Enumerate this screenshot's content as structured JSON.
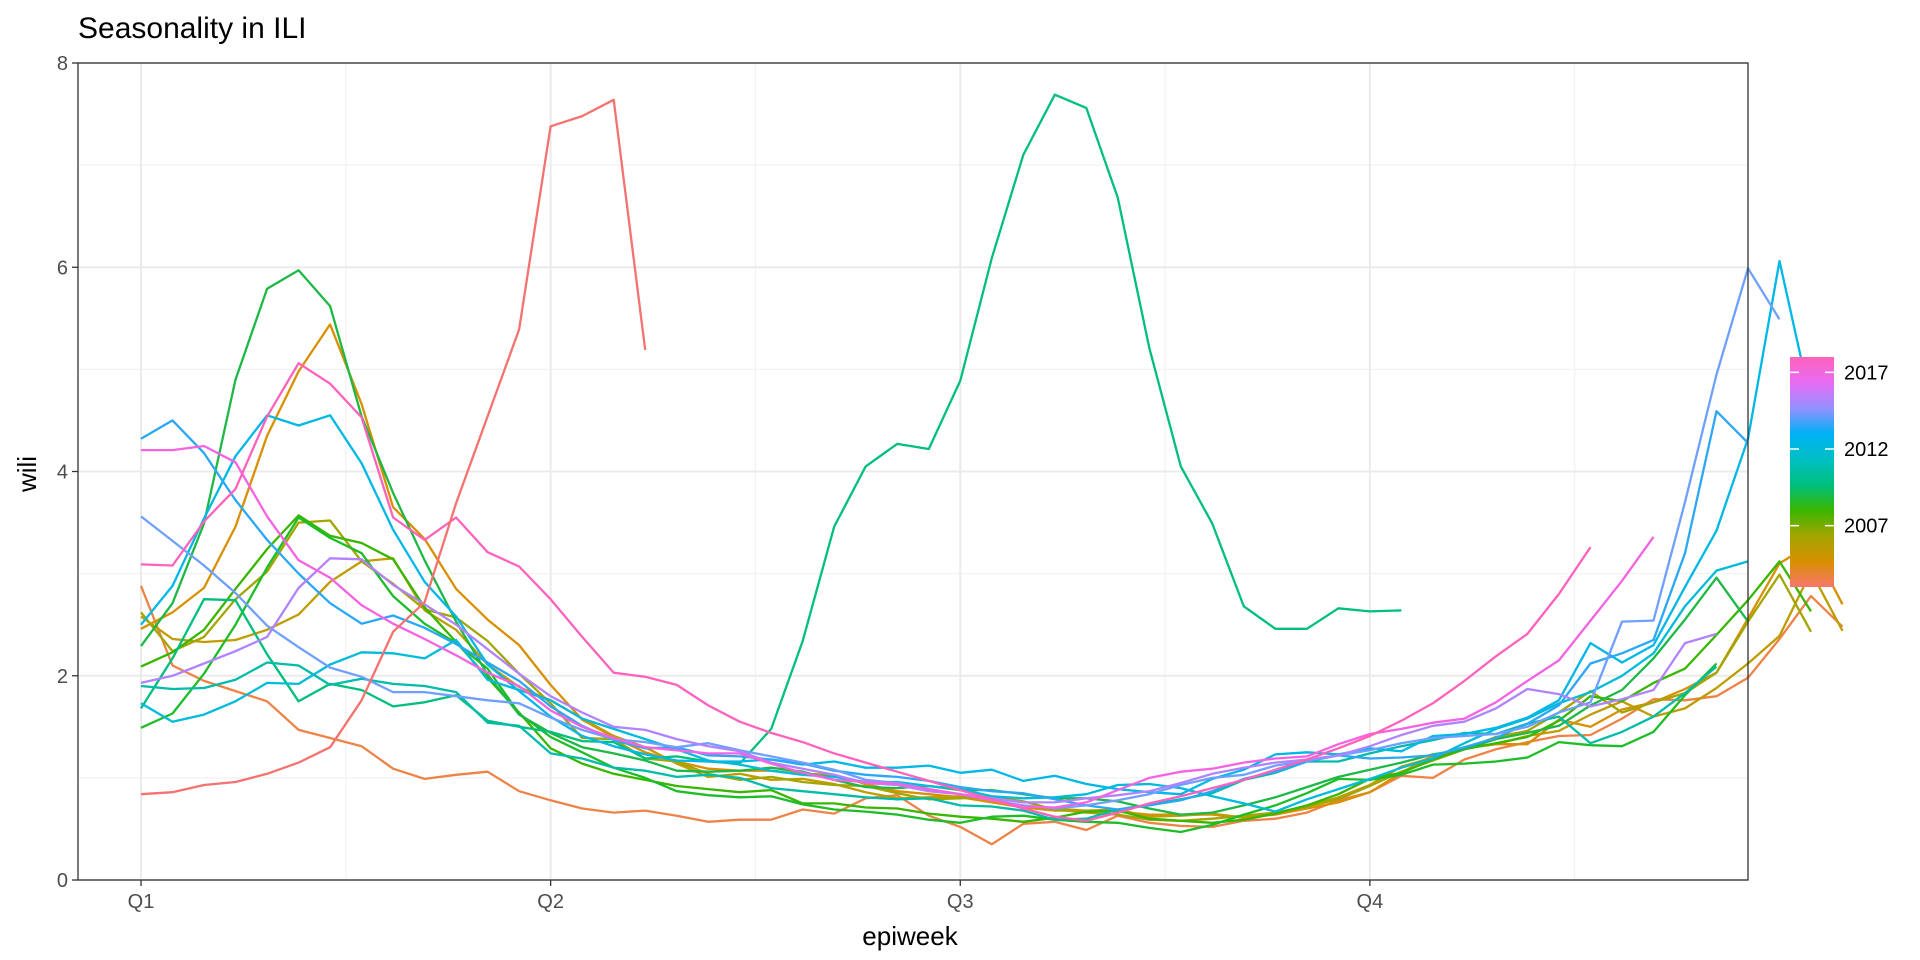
{
  "chart_data": {
    "type": "line",
    "title": "Seasonality in ILI",
    "xlabel": "epiweek",
    "ylabel": "wili",
    "xlim": [
      -1,
      52
    ],
    "ylim": [
      0,
      8
    ],
    "x_ticks": [
      {
        "label": "Q1",
        "value": 1
      },
      {
        "label": "Q2",
        "value": 14
      },
      {
        "label": "Q3",
        "value": 27
      },
      {
        "label": "Q4",
        "value": 40
      }
    ],
    "y_ticks": [
      0,
      2,
      4,
      6,
      8
    ],
    "grid": true,
    "legend": {
      "type": "colorbar",
      "placement": "right",
      "range": [
        2003,
        2018
      ],
      "ticks": [
        "2017",
        "2012",
        "2007"
      ],
      "stops": [
        "#F8766D",
        "#D89000",
        "#A3A500",
        "#39B600",
        "#00BF7D",
        "#00BFC4",
        "#00B0F6",
        "#9590FF",
        "#E76BF3",
        "#FF62BC"
      ]
    },
    "series": [
      {
        "year": 2003,
        "color": "#EE8347",
        "values": [
          2.88,
          2.1,
          1.95,
          1.85,
          1.75,
          1.47,
          1.39,
          1.31,
          1.09,
          0.99,
          1.03,
          1.06,
          0.87,
          0.78,
          0.7,
          0.66,
          0.68,
          0.63,
          0.57,
          0.59,
          0.59,
          0.69,
          0.65,
          0.8,
          0.83,
          0.63,
          0.52,
          0.35,
          0.55,
          0.57,
          0.49,
          0.63,
          0.56,
          0.53,
          0.52,
          0.58,
          0.6,
          0.66,
          0.78,
          0.86,
          1.02,
          1.0,
          1.18,
          1.28,
          1.35,
          1.41,
          1.42,
          1.58,
          1.77,
          1.76,
          1.8,
          1.98,
          2.36,
          2.78,
          2.48
        ]
      },
      {
        "year": 2004,
        "color": "#D89000",
        "values": [
          2.46,
          2.62,
          2.86,
          3.46,
          4.35,
          4.98,
          5.44,
          4.66,
          3.65,
          3.34,
          2.85,
          2.55,
          2.3,
          1.91,
          1.57,
          1.4,
          1.25,
          1.16,
          1.09,
          1.07,
          1.07,
          1.04,
          1.03,
          0.94,
          0.87,
          0.84,
          0.81,
          0.76,
          0.71,
          0.68,
          0.68,
          0.67,
          0.64,
          0.64,
          0.64,
          0.61,
          0.64,
          0.7,
          0.76,
          0.86,
          1.05,
          1.22,
          1.29,
          1.33,
          1.33,
          1.57,
          1.5,
          1.67,
          1.74,
          1.87,
          2.03,
          2.56,
          3.1,
          3.29,
          2.7
        ]
      },
      {
        "year": 2005,
        "color": "#BF9C00",
        "values": [
          2.58,
          2.36,
          2.33,
          2.35,
          2.45,
          2.6,
          2.92,
          3.12,
          3.15,
          2.64,
          2.45,
          2.11,
          1.89,
          1.76,
          1.58,
          1.41,
          1.3,
          1.14,
          1.01,
          1.04,
          0.98,
          0.99,
          0.94,
          0.86,
          0.8,
          0.81,
          0.82,
          0.79,
          0.72,
          0.7,
          0.68,
          0.69,
          0.62,
          0.63,
          0.65,
          0.61,
          0.66,
          0.72,
          0.81,
          0.93,
          1.11,
          1.2,
          1.3,
          1.33,
          1.41,
          1.46,
          1.62,
          1.75,
          1.6,
          1.68,
          1.88,
          2.12,
          2.39,
          3.02,
          2.44
        ]
      },
      {
        "year": 2006,
        "color": "#A3A500",
        "values": [
          2.62,
          2.24,
          2.38,
          2.75,
          3.02,
          3.5,
          3.52,
          3.12,
          2.9,
          2.65,
          2.57,
          2.34,
          2.02,
          1.73,
          1.39,
          1.38,
          1.19,
          1.16,
          1.04,
          0.98,
          1.01,
          0.96,
          0.93,
          0.92,
          0.85,
          0.79,
          0.8,
          0.82,
          0.77,
          0.69,
          0.66,
          0.64,
          0.59,
          0.58,
          0.6,
          0.63,
          0.66,
          0.72,
          0.79,
          0.92,
          1.06,
          1.17,
          1.28,
          1.4,
          1.46,
          1.64,
          1.85,
          1.64,
          1.74,
          1.83,
          2.03,
          2.53,
          2.99,
          2.43
        ]
      },
      {
        "year": 2007,
        "color": "#39B600",
        "values": [
          2.09,
          2.23,
          2.45,
          2.85,
          3.24,
          3.57,
          3.37,
          3.3,
          3.14,
          2.67,
          2.33,
          1.98,
          1.64,
          1.29,
          1.14,
          1.04,
          0.98,
          0.92,
          0.89,
          0.86,
          0.88,
          0.75,
          0.75,
          0.71,
          0.7,
          0.65,
          0.62,
          0.6,
          0.57,
          0.61,
          0.67,
          0.68,
          0.6,
          0.58,
          0.56,
          0.59,
          0.65,
          0.73,
          0.84,
          0.99,
          1.05,
          1.18,
          1.28,
          1.34,
          1.4,
          1.56,
          1.8,
          1.75,
          1.93,
          2.07,
          2.4,
          2.74,
          3.12,
          2.63
        ]
      },
      {
        "year": 2008,
        "color": "#1DBD28",
        "values": [
          1.49,
          1.63,
          2.02,
          2.5,
          3.06,
          3.55,
          3.35,
          3.2,
          2.78,
          2.51,
          2.32,
          2.07,
          1.63,
          1.4,
          1.25,
          1.1,
          1.0,
          0.87,
          0.83,
          0.81,
          0.82,
          0.74,
          0.69,
          0.67,
          0.64,
          0.59,
          0.56,
          0.62,
          0.63,
          0.59,
          0.57,
          0.56,
          0.51,
          0.47,
          0.54,
          0.64,
          0.73,
          0.85,
          0.99,
          0.98,
          1.03,
          1.13,
          1.14,
          1.16,
          1.2,
          1.35,
          1.32,
          1.31,
          1.45,
          1.81,
          2.12
        ]
      },
      {
        "year": 2009,
        "color": "#1DB845",
        "values": [
          2.29,
          2.71,
          3.49,
          4.9,
          5.79,
          5.97,
          5.62,
          4.54,
          3.79,
          3.13,
          2.53,
          2.01,
          1.62,
          1.44,
          1.3,
          1.24,
          1.17,
          1.07,
          1.06,
          1.07,
          1.1,
          1.06,
          0.98,
          0.91,
          0.9,
          0.92,
          0.88,
          0.88,
          0.84,
          0.8,
          0.8,
          0.77,
          0.7,
          0.64,
          0.66,
          0.73,
          0.81,
          0.91,
          1.01,
          1.08,
          1.15,
          1.23,
          1.28,
          1.38,
          1.44,
          1.51,
          1.71,
          1.86,
          2.17,
          2.55,
          2.96,
          2.53
        ]
      },
      {
        "year": 2010,
        "color": "#00BF7D",
        "values": [
          1.68,
          2.17,
          2.75,
          2.74,
          2.21,
          1.75,
          1.92,
          1.86,
          1.7,
          1.74,
          1.81,
          1.56,
          1.5,
          1.45,
          1.36,
          1.35,
          1.19,
          1.21,
          1.16,
          1.14,
          1.48,
          2.34,
          3.46,
          4.05,
          4.27,
          4.22,
          4.89,
          6.09,
          7.1,
          7.69,
          7.56,
          6.68,
          5.21,
          4.05,
          3.49,
          2.68,
          2.46,
          2.46,
          2.66,
          2.63,
          2.64
        ]
      },
      {
        "year": 2011,
        "color": "#00BCA9",
        "values": [
          1.9,
          1.87,
          1.88,
          1.96,
          2.13,
          2.1,
          1.91,
          1.97,
          1.92,
          1.9,
          1.84,
          1.54,
          1.51,
          1.24,
          1.19,
          1.1,
          1.07,
          1.01,
          1.03,
          1.0,
          0.9,
          0.87,
          0.84,
          0.81,
          0.79,
          0.8,
          0.73,
          0.72,
          0.68,
          0.59,
          0.6,
          0.69,
          0.74,
          0.79,
          0.85,
          0.98,
          1.05,
          1.16,
          1.16,
          1.24,
          1.31,
          1.37,
          1.44,
          1.43,
          1.53,
          1.6,
          1.34,
          1.45,
          1.6,
          1.83,
          2.09
        ]
      },
      {
        "year": 2012,
        "color": "#00BBDA",
        "values": [
          1.73,
          1.55,
          1.62,
          1.75,
          1.93,
          1.92,
          2.11,
          2.23,
          2.22,
          2.17,
          2.35,
          1.96,
          1.86,
          1.76,
          1.58,
          1.48,
          1.38,
          1.28,
          1.17,
          1.13,
          1.07,
          1.03,
          1.01,
          0.96,
          0.96,
          0.92,
          0.89,
          0.82,
          0.8,
          0.81,
          0.84,
          0.93,
          0.94,
          0.9,
          0.82,
          0.75,
          0.67,
          0.79,
          0.89,
          0.99,
          1.1,
          1.19,
          1.34,
          1.48,
          1.58,
          1.73,
          1.84,
          2.0,
          2.22,
          2.68,
          3.03,
          3.12
        ]
      },
      {
        "year": 2013,
        "color": "#00B8E5",
        "values": [
          2.5,
          2.88,
          3.54,
          4.15,
          4.55,
          4.45,
          4.55,
          4.08,
          3.43,
          2.92,
          2.58,
          2.11,
          1.85,
          1.6,
          1.41,
          1.31,
          1.23,
          1.17,
          1.16,
          1.16,
          1.18,
          1.13,
          1.16,
          1.1,
          1.1,
          1.12,
          1.05,
          1.08,
          0.97,
          1.02,
          0.94,
          0.89,
          0.86,
          0.84,
          0.99,
          1.08,
          1.23,
          1.25,
          1.23,
          1.29,
          1.26,
          1.41,
          1.43,
          1.49,
          1.59,
          1.76,
          2.32,
          2.13,
          2.3,
          2.87,
          3.42,
          4.32,
          6.06,
          4.67
        ]
      },
      {
        "year": 2014,
        "color": "#2AA8F5",
        "values": [
          4.32,
          4.5,
          4.18,
          3.72,
          3.33,
          3.0,
          2.71,
          2.51,
          2.59,
          2.47,
          2.31,
          2.13,
          1.95,
          1.7,
          1.51,
          1.37,
          1.29,
          1.3,
          1.22,
          1.21,
          1.18,
          1.14,
          1.07,
          1.03,
          1.01,
          0.97,
          0.91,
          0.87,
          0.85,
          0.79,
          0.73,
          0.69,
          0.73,
          0.78,
          0.87,
          0.99,
          1.06,
          1.16,
          1.22,
          1.19,
          1.2,
          1.22,
          1.3,
          1.39,
          1.53,
          1.71,
          2.12,
          2.22,
          2.35,
          3.2,
          4.59,
          4.28
        ]
      },
      {
        "year": 2015,
        "color": "#6FA0FF",
        "values": [
          3.56,
          3.32,
          3.08,
          2.81,
          2.49,
          2.28,
          2.08,
          1.99,
          1.84,
          1.84,
          1.8,
          1.76,
          1.73,
          1.59,
          1.47,
          1.38,
          1.35,
          1.3,
          1.34,
          1.27,
          1.21,
          1.15,
          1.08,
          0.98,
          0.95,
          0.89,
          0.84,
          0.78,
          0.73,
          0.7,
          0.73,
          0.78,
          0.84,
          0.93,
          1.0,
          1.03,
          1.12,
          1.17,
          1.22,
          1.27,
          1.34,
          1.39,
          1.41,
          1.43,
          1.5,
          1.64,
          1.74,
          2.53,
          2.54,
          3.7,
          4.95,
          5.99,
          5.49
        ]
      },
      {
        "year": 2016,
        "color": "#B183FF",
        "values": [
          1.93,
          2.0,
          2.12,
          2.24,
          2.38,
          2.86,
          3.15,
          3.14,
          2.89,
          2.7,
          2.5,
          2.26,
          2.02,
          1.8,
          1.64,
          1.5,
          1.47,
          1.38,
          1.31,
          1.26,
          1.15,
          1.09,
          1.03,
          0.95,
          0.93,
          0.87,
          0.84,
          0.8,
          0.76,
          0.76,
          0.8,
          0.83,
          0.87,
          0.95,
          1.04,
          1.1,
          1.15,
          1.18,
          1.22,
          1.31,
          1.42,
          1.51,
          1.55,
          1.68,
          1.87,
          1.82,
          1.7,
          1.77,
          1.86,
          2.32,
          2.41
        ]
      },
      {
        "year": 2017,
        "color": "#F563E3",
        "values": [
          4.21,
          4.21,
          4.25,
          4.09,
          3.56,
          3.13,
          2.96,
          2.69,
          2.51,
          2.36,
          2.2,
          2.03,
          1.9,
          1.66,
          1.5,
          1.39,
          1.3,
          1.27,
          1.24,
          1.24,
          1.14,
          1.05,
          0.98,
          0.96,
          0.94,
          0.89,
          0.84,
          0.78,
          0.72,
          0.71,
          0.76,
          0.88,
          1.0,
          1.06,
          1.09,
          1.15,
          1.19,
          1.21,
          1.33,
          1.43,
          1.48,
          1.54,
          1.58,
          1.74,
          1.95,
          2.15,
          2.54,
          2.93,
          3.36
        ]
      },
      {
        "year": 2017,
        "color": "#FF62BC",
        "values": [
          3.09,
          3.08,
          3.51,
          3.83,
          4.54,
          5.06,
          4.86,
          4.53,
          3.55,
          3.33,
          3.55,
          3.21,
          3.07,
          2.75,
          2.38,
          2.03,
          1.99,
          1.91,
          1.71,
          1.55,
          1.44,
          1.35,
          1.24,
          1.15,
          1.06,
          0.97,
          0.88,
          0.79,
          0.7,
          0.62,
          0.58,
          0.66,
          0.75,
          0.82,
          0.9,
          0.98,
          1.08,
          1.18,
          1.29,
          1.41,
          1.56,
          1.73,
          1.95,
          2.19,
          2.41,
          2.8,
          3.26
        ]
      },
      {
        "year": 2018,
        "color": "#F4726F",
        "values": [
          0.84,
          0.86,
          0.93,
          0.96,
          1.04,
          1.15,
          1.3,
          1.76,
          2.43,
          2.72,
          3.69,
          4.54,
          5.39,
          7.38,
          7.48,
          7.64,
          5.19
        ]
      }
    ]
  }
}
